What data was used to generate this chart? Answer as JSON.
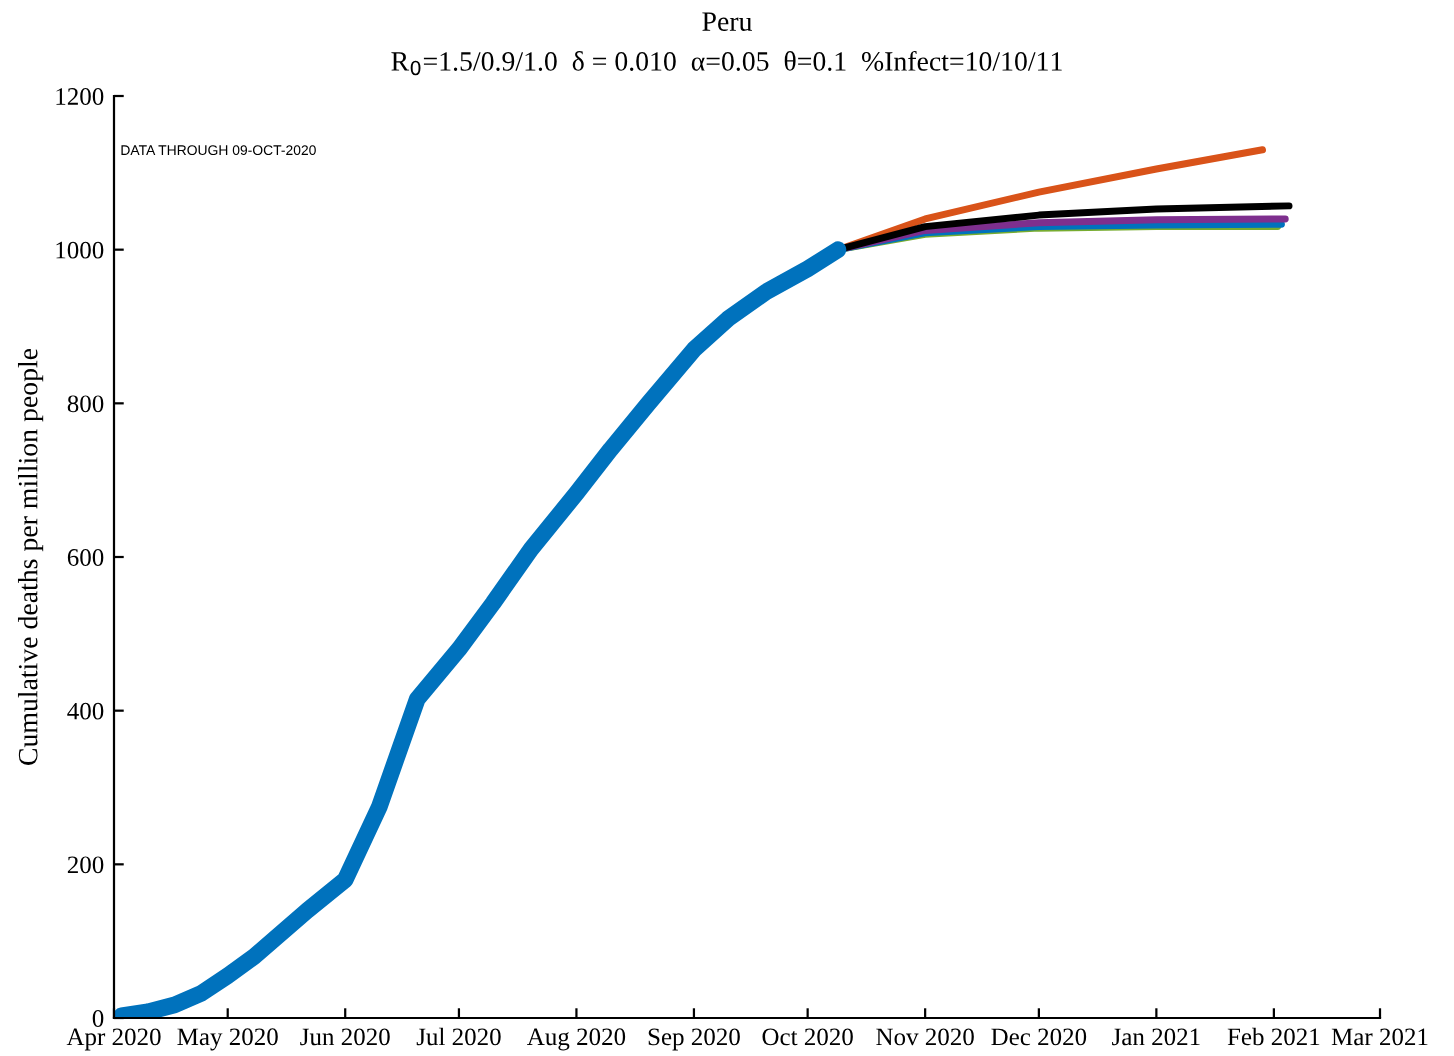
{
  "chart_data": {
    "type": "line",
    "title": "Peru",
    "subtitle": "R$_{0}$=1.5/0.9/1.0  δ = 0.010  α=0.05  θ=0.1  %Infect=10/10/11",
    "ylabel": "Cumulative deaths per million people",
    "annotations": [
      "DATA THROUGH 09-OCT-2020"
    ],
    "xlim": [
      "2020-04-01",
      "2021-03-01"
    ],
    "xticks": [
      {
        "value": "2020-04-01",
        "label": "Apr 2020"
      },
      {
        "value": "2020-05-01",
        "label": "May 2020"
      },
      {
        "value": "2020-06-01",
        "label": "Jun 2020"
      },
      {
        "value": "2020-07-01",
        "label": "Jul 2020"
      },
      {
        "value": "2020-08-01",
        "label": "Aug 2020"
      },
      {
        "value": "2020-09-01",
        "label": "Sep 2020"
      },
      {
        "value": "2020-10-01",
        "label": "Oct 2020"
      },
      {
        "value": "2020-11-01",
        "label": "Nov 2020"
      },
      {
        "value": "2020-12-01",
        "label": "Dec 2020"
      },
      {
        "value": "2021-01-01",
        "label": "Jan 2021"
      },
      {
        "value": "2021-02-01",
        "label": "Feb 2021"
      },
      {
        "value": "2021-03-01",
        "label": "Mar 2021"
      }
    ],
    "ylim": [
      0,
      1200
    ],
    "yticks": [
      0,
      200,
      400,
      600,
      800,
      1000,
      1200
    ],
    "grid": false,
    "marker": "none",
    "line_style": "solid",
    "series": [
      {
        "color": "#d95319",
        "x": [
          "2020-10-09",
          "2020-11-01",
          "2020-12-01",
          "2021-01-01",
          "2021-01-29"
        ],
        "values": [
          1000,
          1040,
          1075,
          1105,
          1130
        ]
      },
      {
        "color": "#77ac30",
        "x": [
          "2020-10-09",
          "2020-11-01",
          "2020-12-01",
          "2021-01-01",
          "2021-02-02"
        ],
        "values": [
          1000,
          1020,
          1028,
          1030,
          1030
        ]
      },
      {
        "color": "#0072bd",
        "x": [
          "2020-10-09",
          "2020-11-01",
          "2020-12-01",
          "2021-01-01",
          "2021-02-03"
        ],
        "values": [
          1000,
          1022,
          1030,
          1032,
          1033
        ]
      },
      {
        "color": "#7e2f8e",
        "x": [
          "2020-10-09",
          "2020-11-01",
          "2020-12-01",
          "2021-01-01",
          "2021-02-04"
        ],
        "values": [
          1000,
          1025,
          1035,
          1039,
          1040
        ]
      },
      {
        "color": "#000000",
        "x": [
          "2020-10-09",
          "2020-11-01",
          "2020-12-01",
          "2021-01-01",
          "2021-02-05"
        ],
        "values": [
          1000,
          1030,
          1045,
          1053,
          1057
        ]
      },
      {
        "color": "#0072bd",
        "x": [
          "2020-04-03",
          "2020-04-10",
          "2020-04-17",
          "2020-04-24",
          "2020-05-01",
          "2020-05-08",
          "2020-05-15",
          "2020-05-22",
          "2020-06-01",
          "2020-06-10",
          "2020-06-20",
          "2020-07-01",
          "2020-07-10",
          "2020-07-20",
          "2020-08-01",
          "2020-08-10",
          "2020-08-20",
          "2020-09-01",
          "2020-09-10",
          "2020-09-20",
          "2020-10-01",
          "2020-10-09"
        ],
        "values": [
          3,
          8,
          17,
          32,
          55,
          80,
          110,
          140,
          180,
          275,
          415,
          480,
          540,
          610,
          683,
          740,
          800,
          870,
          910,
          945,
          975,
          1000
        ]
      }
    ]
  }
}
